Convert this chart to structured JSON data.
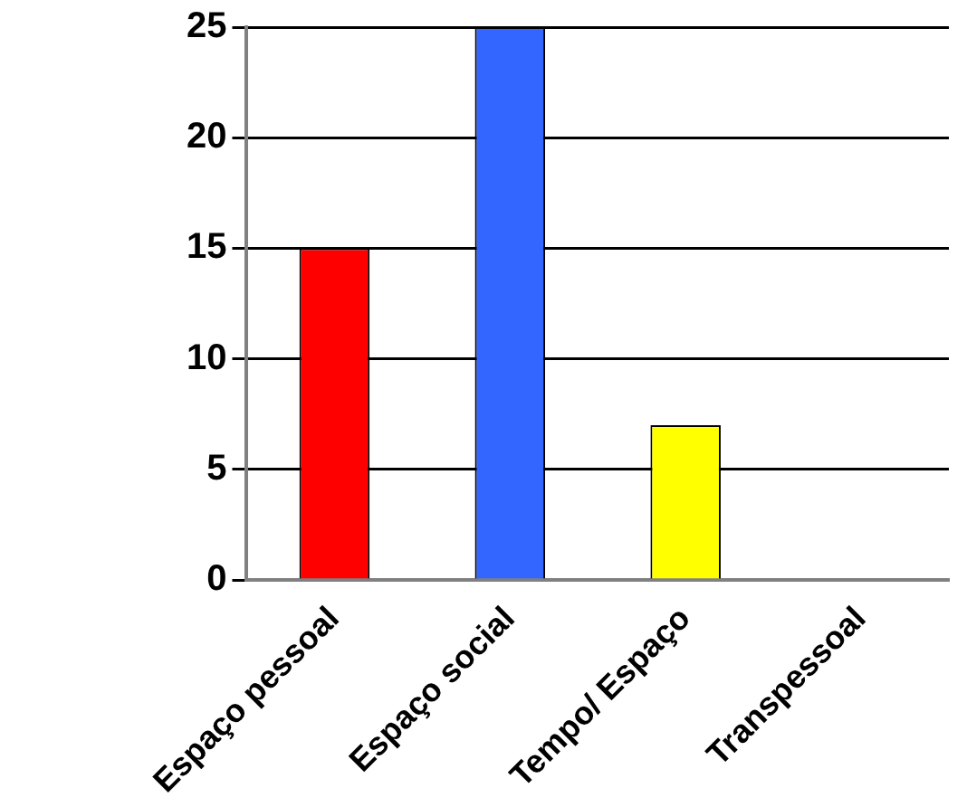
{
  "chart_data": {
    "type": "bar",
    "categories": [
      "Espaço pessoal",
      "Espaço social",
      "Tempo/ Espaço",
      "Transpessoal"
    ],
    "values": [
      15,
      25,
      7,
      0
    ],
    "colors": [
      "#ff0000",
      "#3366ff",
      "#ffff00",
      "#33cccc"
    ],
    "ylim": [
      0,
      25
    ],
    "yticks": [
      0,
      5,
      10,
      15,
      20,
      25
    ],
    "grid": "y",
    "legend": false
  }
}
